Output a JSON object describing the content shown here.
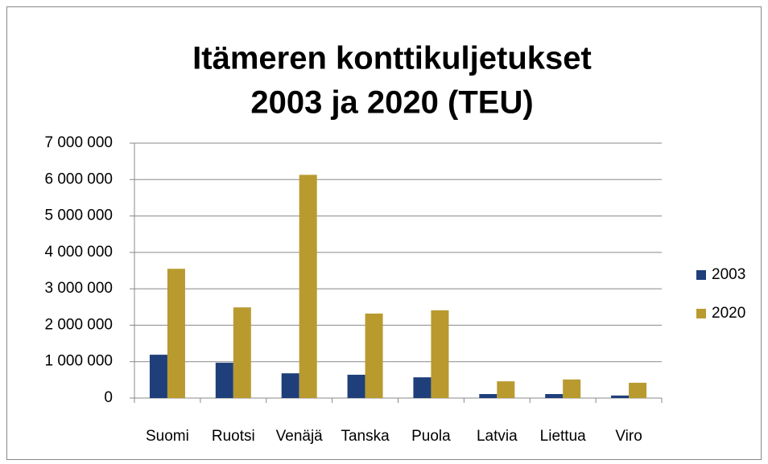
{
  "chart_data": {
    "type": "bar",
    "title": [
      "Itämeren konttikuljetukset",
      "2003 ja 2020 (TEU)"
    ],
    "categories": [
      "Suomi",
      "Ruotsi",
      "Venäjä",
      "Tanska",
      "Puola",
      "Latvia",
      "Liettua",
      "Viro"
    ],
    "series": [
      {
        "name": "2003",
        "color": "#1f3f7a",
        "values": [
          1190000,
          970000,
          680000,
          640000,
          570000,
          110000,
          110000,
          70000
        ]
      },
      {
        "name": "2020",
        "color": "#b89a2e",
        "values": [
          3550000,
          2490000,
          6130000,
          2320000,
          2410000,
          460000,
          510000,
          420000
        ]
      }
    ],
    "ylim": [
      0,
      7000000
    ],
    "yticks": [
      0,
      {
        "value": 1000000,
        "label": "1 000 000"
      },
      {
        "value": 2000000,
        "label": "2 000 000"
      },
      {
        "value": 3000000,
        "label": "3 000 000"
      },
      {
        "value": 4000000,
        "label": "4 000 000"
      },
      {
        "value": 5000000,
        "label": "5 000 000"
      },
      {
        "value": 6000000,
        "label": "6 000 000"
      },
      {
        "value": 7000000,
        "label": "7 000 000"
      }
    ],
    "grid": true,
    "legend": "right"
  }
}
